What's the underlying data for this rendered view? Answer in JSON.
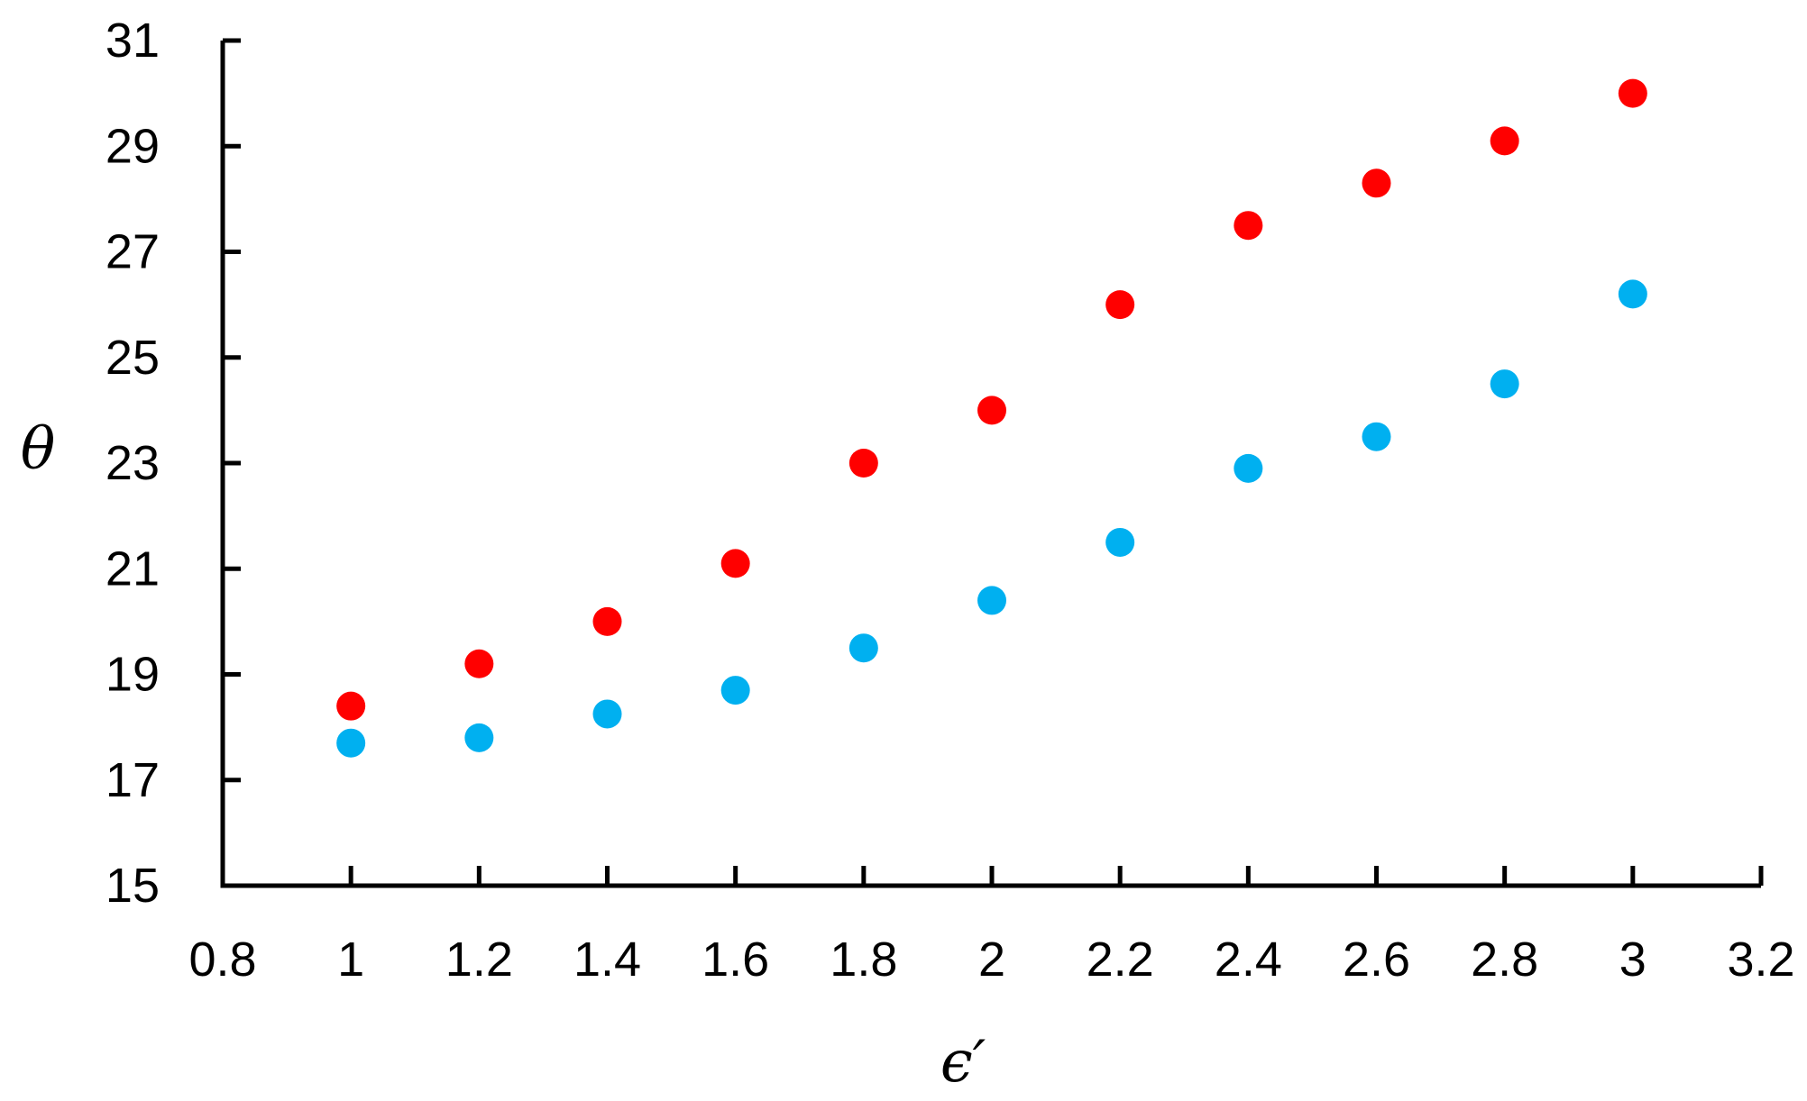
{
  "chart_data": {
    "type": "scatter",
    "title": "",
    "xlabel": "ϵ′",
    "ylabel": "θ",
    "xlim": [
      0.8,
      3.2
    ],
    "ylim": [
      15,
      31
    ],
    "xticks": [
      0.8,
      1,
      1.2,
      1.4,
      1.6,
      1.8,
      2,
      2.2,
      2.4,
      2.6,
      2.8,
      3,
      3.2
    ],
    "xtick_labels": [
      "0.8",
      "1",
      "1.2",
      "1.4",
      "1.6",
      "1.8",
      "2",
      "2.2",
      "2.4",
      "2.6",
      "2.8",
      "3",
      "3.2"
    ],
    "yticks": [
      15,
      17,
      19,
      21,
      23,
      25,
      27,
      29,
      31
    ],
    "ytick_labels": [
      "15",
      "17",
      "19",
      "21",
      "23",
      "25",
      "27",
      "29",
      "31"
    ],
    "grid": false,
    "legend": "none",
    "series": [
      {
        "color": "#ff0000",
        "x": [
          1,
          1.2,
          1.4,
          1.6,
          1.8,
          2,
          2.2,
          2.4,
          2.6,
          2.8,
          3
        ],
        "y": [
          18.4,
          19.2,
          20.0,
          21.1,
          23.0,
          24.0,
          26.0,
          27.5,
          28.3,
          29.1,
          30.0
        ]
      },
      {
        "color": "#00b0f0",
        "x": [
          1,
          1.2,
          1.4,
          1.6,
          1.8,
          2,
          2.2,
          2.4,
          2.6,
          2.8,
          3
        ],
        "y": [
          17.7,
          17.8,
          18.25,
          18.7,
          19.5,
          20.4,
          21.5,
          22.9,
          23.5,
          24.5,
          26.2
        ]
      }
    ]
  }
}
